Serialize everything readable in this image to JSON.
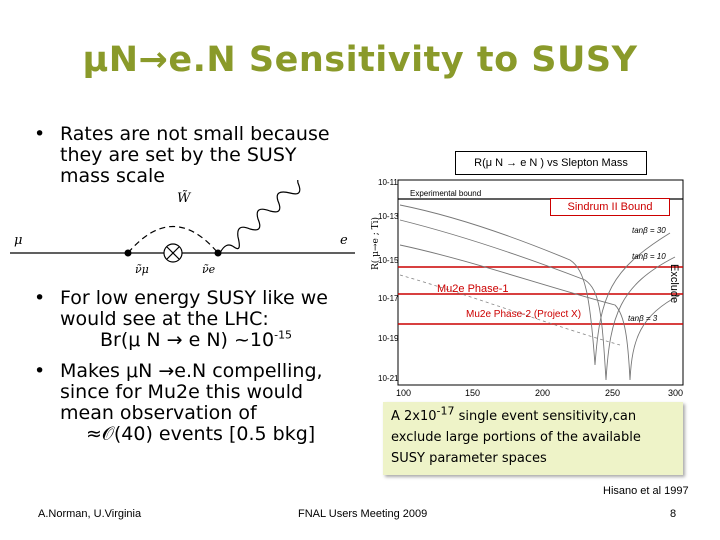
{
  "slide": {
    "title": "μN→e.N Sensitivity to SUSY",
    "bullet1": {
      "line1": "Rates are not small because",
      "line2": "they are set by the SUSY",
      "line3": "mass scale"
    },
    "bullet2": {
      "line1": "For low energy SUSY like we",
      "line2": "would see at the LHC:",
      "line3_pre": "Br(μ N → e N) ~10",
      "line3_sup": "-15"
    },
    "bullet3": {
      "line1": "Makes μN →e.N compelling,",
      "line2": "since for Mu2e this would",
      "line3": "mean observation of",
      "line4": "≈𝒪(40) events  [0.5 bkg]"
    },
    "bullet_char": "•"
  },
  "feynman": {
    "label_mu": "μ",
    "label_e": "e",
    "label_W": "W̃",
    "label_nu_mu": "ν̃μ",
    "label_nu_e": "ν̃e",
    "vertex_symbol": "⊗"
  },
  "plot": {
    "box_title": "R(μ N → e N ) vs Slepton Mass",
    "ylabel": "R( μ→e ; Ti)",
    "experimental_bound": "Experimental bound",
    "sindrum": "Sindrum II Bound",
    "exclude": "Exclude",
    "mu2e_phase1": "Mu2e Phase-1",
    "mu2e_phase2": "Mu2e Phase-2 (Project X)",
    "tanb30": "tanβ = 30",
    "tanb10": "tanβ = 10",
    "tanb3": "tanβ = 3",
    "yticks": [
      "10-11",
      "10-13",
      "10-15",
      "10-17",
      "10-19",
      "10-21"
    ],
    "xticks": [
      "100",
      "150",
      "200",
      "250",
      "300"
    ]
  },
  "callout": {
    "line1_pre": "A 2x10",
    "line1_sup": "-17",
    "line1_post": " single event sensitivity,can",
    "line2": "exclude large portions of the available",
    "line3": "SUSY parameter spaces"
  },
  "citation": "Hisano et al 1997",
  "footer": {
    "left": "A.Norman, U.Virginia",
    "center": "FNAL Users Meeting 2009",
    "page": "8"
  },
  "colors": {
    "title": "#8a9a2a",
    "accent_red": "#cc0000",
    "callout_bg": "#eef3c8"
  }
}
